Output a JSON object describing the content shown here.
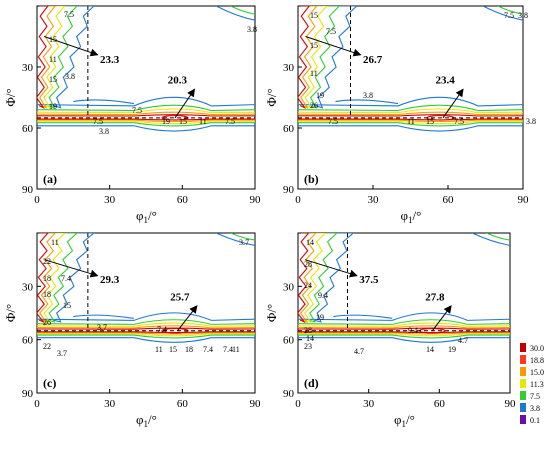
{
  "chart_data": [
    {
      "panel_label": "(a)",
      "type": "contour",
      "xlabel": "φ1/°",
      "ylabel": "Φ/°",
      "xlim": [
        0,
        90
      ],
      "ylim": [
        0,
        90
      ],
      "x_ticks": [
        "0",
        "30",
        "60",
        "90"
      ],
      "y_ticks": [
        "30",
        "60",
        "90"
      ],
      "peak_fiber": {
        "value": "23.3",
        "phi": 15
      },
      "peak_cube": {
        "value": "20.3",
        "phi1": 57,
        "phi": 55
      },
      "contour_labels": [
        "7.5",
        "3.8",
        "15",
        "11",
        "15",
        "3.8",
        "19",
        "7.5",
        "7.5",
        "19",
        "15",
        "11",
        "7.5",
        "3.8"
      ]
    },
    {
      "panel_label": "(b)",
      "type": "contour",
      "xlabel": "φ1/°",
      "ylabel": "Φ/°",
      "xlim": [
        0,
        90
      ],
      "ylim": [
        0,
        90
      ],
      "x_ticks": [
        "0",
        "30",
        "60",
        "90"
      ],
      "y_ticks": [
        "30",
        "60",
        "90"
      ],
      "peak_fiber": {
        "value": "26.7",
        "phi": 15
      },
      "peak_cube": {
        "value": "23.4",
        "phi1": 58,
        "phi": 55
      },
      "contour_labels": [
        "15",
        "7.5",
        "15",
        "11",
        "19",
        "26",
        "3.8",
        "7.5",
        "11",
        "15",
        "7.5",
        "3.8",
        "3.8",
        "7.5"
      ]
    },
    {
      "panel_label": "(c)",
      "type": "contour",
      "xlabel": "φ1/°",
      "ylabel": "Φ/°",
      "xlim": [
        0,
        90
      ],
      "ylim": [
        0,
        90
      ],
      "x_ticks": [
        "0",
        "30",
        "60",
        "90"
      ],
      "y_ticks": [
        "30",
        "60",
        "90"
      ],
      "peak_fiber": {
        "value": "29.3",
        "phi": 15
      },
      "peak_cube": {
        "value": "25.7",
        "phi1": 58,
        "phi": 55
      },
      "contour_labels": [
        "11",
        "22",
        "18",
        "7.4",
        "18",
        "15",
        "26",
        "22",
        "3.7",
        "3.7",
        "7.4",
        "7.4",
        "11",
        "15",
        "18",
        "7.4",
        "11",
        "3.7"
      ]
    },
    {
      "panel_label": "(d)",
      "type": "contour",
      "xlabel": "φ1/°",
      "ylabel": "Φ/°",
      "xlim": [
        0,
        90
      ],
      "ylim": [
        0,
        90
      ],
      "x_ticks": [
        "0",
        "30",
        "60",
        "90"
      ],
      "y_ticks": [
        "30",
        "60",
        "90"
      ],
      "peak_fiber": {
        "value": "37.5",
        "phi": 15
      },
      "peak_cube": {
        "value": "27.8",
        "phi1": 57,
        "phi": 55
      },
      "contour_labels": [
        "14",
        "28",
        "24",
        "9.4",
        "19",
        "14",
        "28",
        "23",
        "9.4",
        "4.7",
        "4.7",
        "19",
        "14"
      ]
    }
  ],
  "legend": {
    "levels": [
      "30.0",
      "18.8",
      "15.0",
      "11.3",
      "7.5",
      "3.8",
      "0.1"
    ],
    "colors": [
      "#c00000",
      "#ff3b1f",
      "#ff9a00",
      "#e8e800",
      "#33cc33",
      "#1f77d4",
      "#6a0dad"
    ]
  },
  "colors": {
    "low": "#1f77d4",
    "mid": "#33cc33",
    "mid2": "#e8e800",
    "high": "#ff9a00",
    "peak": "#d40000"
  }
}
